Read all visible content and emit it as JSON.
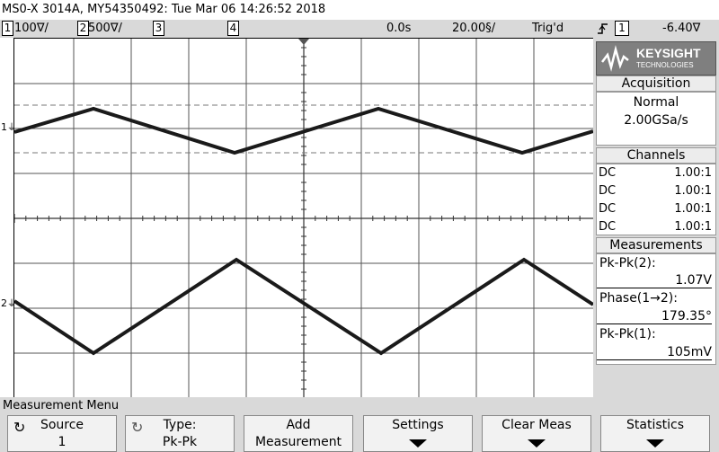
{
  "title": "MS0-X 3014A, MY54350492: Tue Mar 06 14:26:52 2018",
  "status": {
    "ch1_num": "1",
    "ch1_scale": "100∇/",
    "ch2_num": "2",
    "ch2_scale": "500∇/",
    "ch3_num": "3",
    "ch4_num": "4",
    "time_delay": "0.0s",
    "time_scale": "20.00§/",
    "mode": "Trig'd",
    "trig_slope_icon": "rising-edge-icon",
    "trig_source": "1",
    "trig_level": "-6.40∇"
  },
  "markers": {
    "ch1": "1",
    "ch2": "2"
  },
  "logo": {
    "brand": "KEYSIGHT",
    "sub": "TECHNOLOGIES"
  },
  "acquisition": {
    "header": "Acquisition",
    "mode": "Normal",
    "rate": "2.00GSa/s"
  },
  "channels": {
    "header": "Channels",
    "rows": [
      {
        "coupling": "DC",
        "probe": "1.00:1"
      },
      {
        "coupling": "DC",
        "probe": "1.00:1"
      },
      {
        "coupling": "DC",
        "probe": "1.00:1"
      },
      {
        "coupling": "DC",
        "probe": "1.00:1"
      }
    ]
  },
  "measurements": {
    "header": "Measurements",
    "items": [
      {
        "label": "Pk-Pk(2):",
        "value": "1.07V"
      },
      {
        "label": "Phase(1→2):",
        "value": "179.35°"
      },
      {
        "label": "Pk-Pk(1):",
        "value": "105mV"
      }
    ]
  },
  "menu": {
    "title": "Measurement Menu",
    "keys": [
      {
        "line1": "Source",
        "line2": "1"
      },
      {
        "line1": "Type:",
        "line2": "Pk-Pk"
      },
      {
        "line1": "Add",
        "line2": "Measurement"
      },
      {
        "line1": "Settings",
        "line2": ""
      },
      {
        "line1": "Clear Meas",
        "line2": ""
      },
      {
        "line1": "Statistics",
        "line2": ""
      }
    ]
  }
}
